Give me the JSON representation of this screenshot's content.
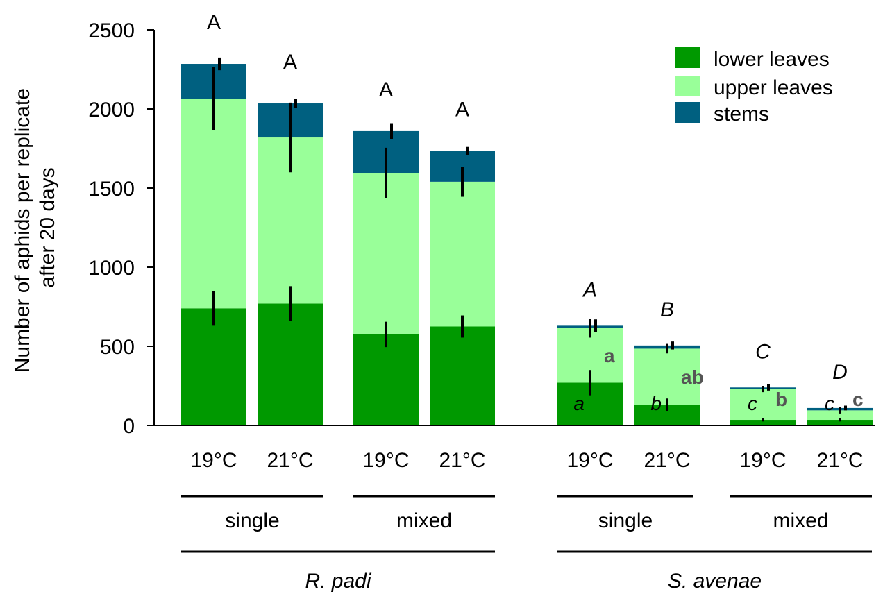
{
  "chart_data": {
    "type": "bar",
    "stacked": true,
    "title": "",
    "ylabel_line1": "Number of aphids per replicate",
    "ylabel_line2": "after 20 days",
    "xlabel": "",
    "ylim": [
      0,
      2500
    ],
    "yticks": [
      "0",
      "500",
      "1000",
      "1500",
      "2000",
      "2500"
    ],
    "legend": {
      "placement": "top-right",
      "entries": [
        "lower leaves",
        "upper leaves",
        "stems"
      ]
    },
    "colors": {
      "lower leaves": "#009900",
      "upper leaves": "#99ff99",
      "stems": "#006080",
      "error_bar": "#000000",
      "grey_letter": "#555555"
    },
    "categories": [
      "19°C",
      "21°C",
      "19°C",
      "21°C",
      "19°C",
      "21°C",
      "19°C",
      "21°C"
    ],
    "groups": [
      {
        "label": "single",
        "species": "R. padi"
      },
      {
        "label": "mixed",
        "species": "R. padi"
      },
      {
        "label": "single",
        "species": "S. avenae"
      },
      {
        "label": "mixed",
        "species": "S. avenae"
      }
    ],
    "species": [
      "R. padi",
      "S. avenae"
    ],
    "series": [
      {
        "name": "lower leaves",
        "values": [
          740,
          770,
          575,
          625,
          270,
          130,
          35,
          35
        ]
      },
      {
        "name": "upper leaves",
        "values": [
          1325,
          1050,
          1020,
          915,
          345,
          355,
          195,
          60
        ]
      },
      {
        "name": "stems",
        "values": [
          220,
          215,
          265,
          195,
          15,
          20,
          10,
          15
        ]
      }
    ],
    "error_bars": {
      "lower leaves": [
        110,
        110,
        80,
        70,
        80,
        40,
        10,
        10
      ],
      "upper leaves": [
        200,
        220,
        160,
        95,
        60,
        30,
        20,
        20
      ],
      "stems": [
        40,
        30,
        50,
        25,
        40,
        25,
        20,
        15
      ]
    },
    "annotations": {
      "total": [
        "A",
        "A",
        "A",
        "A",
        "A",
        "B",
        "C",
        "D"
      ],
      "upper": [
        "",
        "",
        "",
        "",
        "a",
        "ab",
        "b",
        "c"
      ],
      "lower": [
        "",
        "",
        "",
        "",
        "a",
        "b",
        "c",
        "c"
      ]
    }
  }
}
